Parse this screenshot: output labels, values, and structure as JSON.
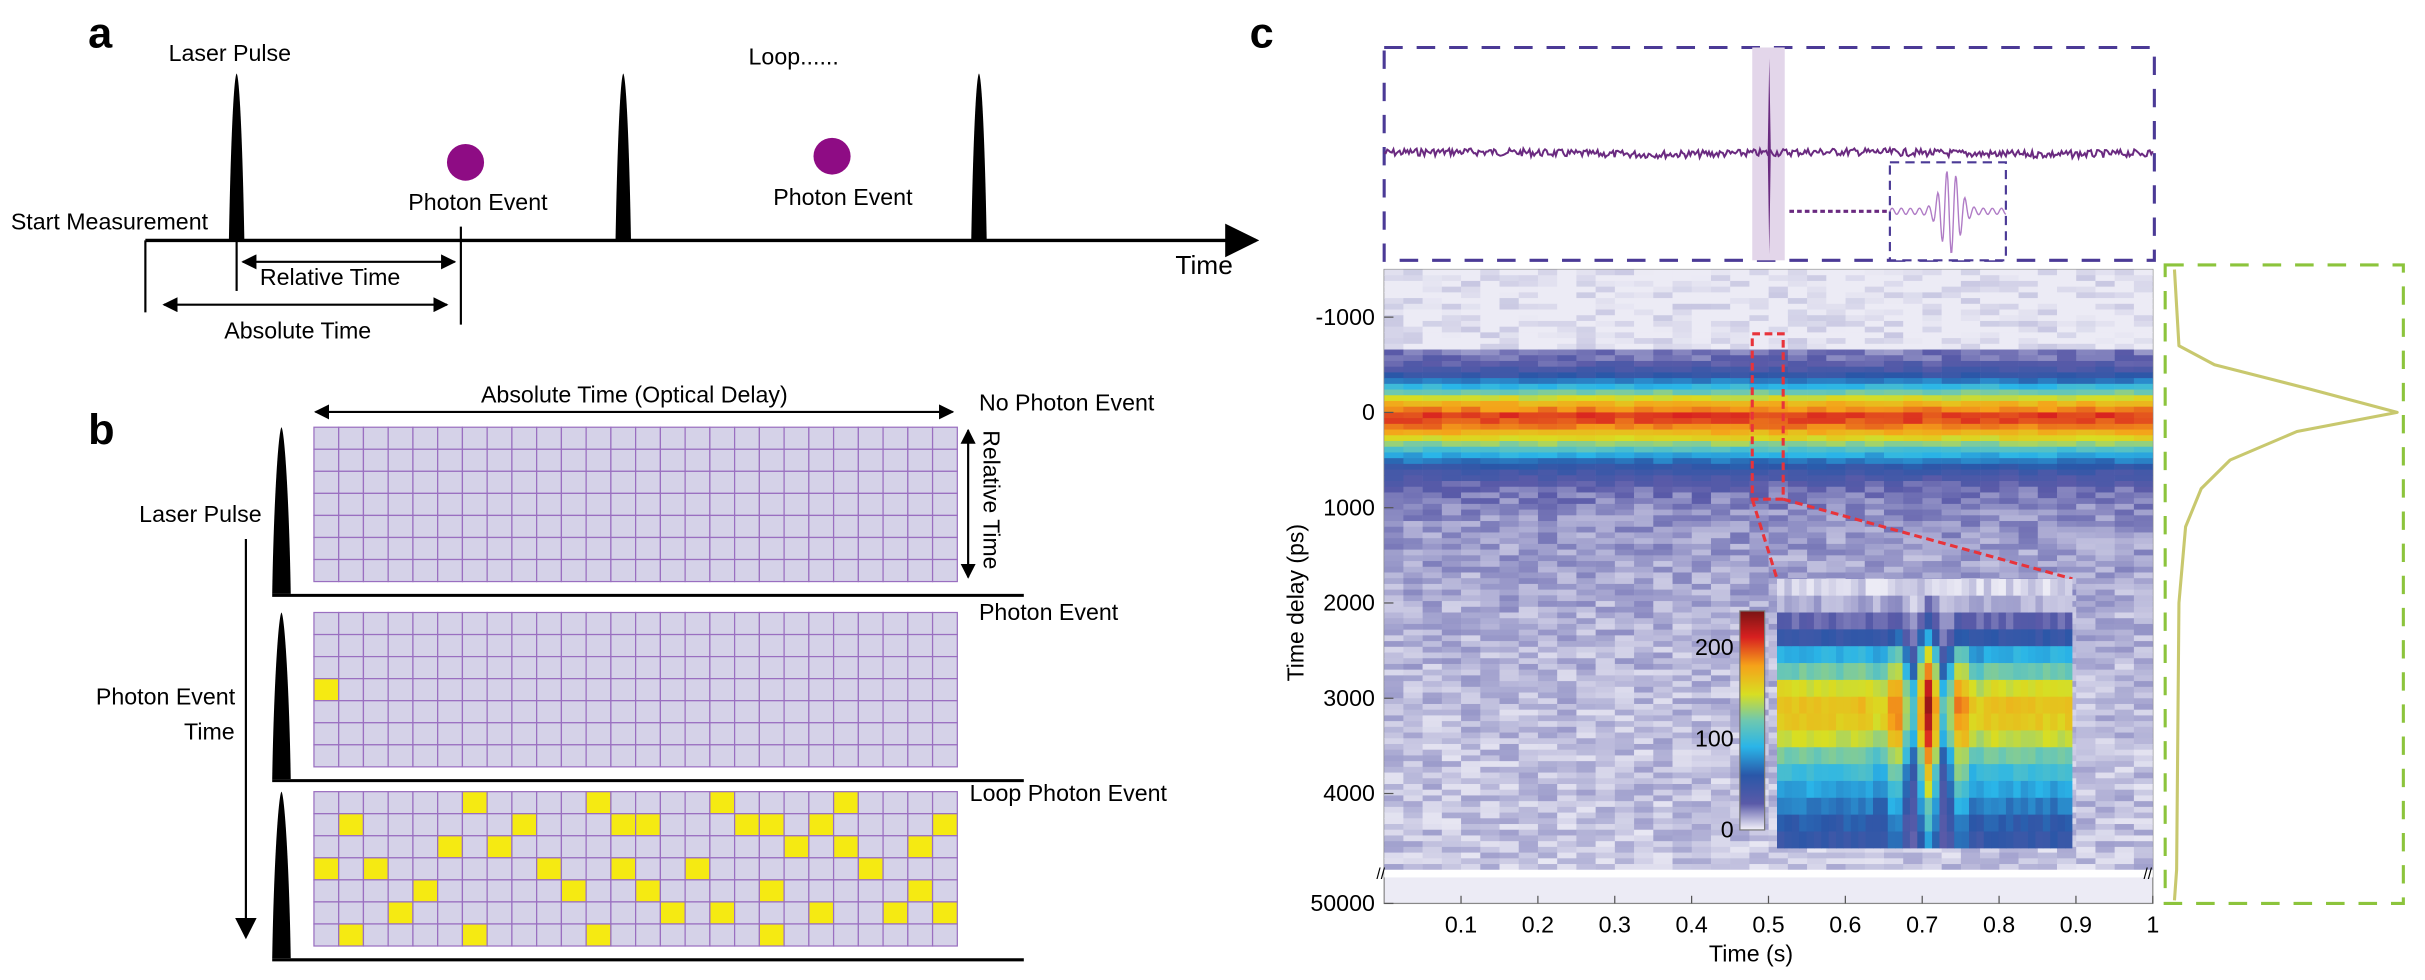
{
  "panel_a": {
    "letter": "a",
    "laser_pulse_label": "Laser Pulse",
    "loop_label": "Loop......",
    "start_label": "Start Measurement",
    "photon_event_label_1": "Photon Event",
    "photon_event_label_2": "Photon Event",
    "relative_time_label": "Relative Time",
    "absolute_time_label": "Absolute Time",
    "time_axis_label": "Time",
    "photon_color": "#8e0c84"
  },
  "panel_b": {
    "letter": "b",
    "top_axis_label": "Absolute Time (Optical Delay)",
    "relative_time_label": "Relative Time",
    "laser_pulse_label": "Laser Pulse",
    "photon_event_time_label_1": "Photon Event",
    "photon_event_time_label_2": "Time",
    "grid_rows": 7,
    "grid_cols": 26,
    "cell_color": "#d5d2e8",
    "line_color": "#9a6fc0",
    "event_color": "#f5ea12",
    "grids": [
      {
        "label": "No Photon Event",
        "events": []
      },
      {
        "label": "Photon Event",
        "events": [
          [
            3,
            0
          ]
        ]
      },
      {
        "label": "Loop Photon Event",
        "events": [
          [
            0,
            6
          ],
          [
            0,
            11
          ],
          [
            0,
            16
          ],
          [
            0,
            21
          ],
          [
            1,
            1
          ],
          [
            1,
            8
          ],
          [
            1,
            12
          ],
          [
            1,
            13
          ],
          [
            1,
            17
          ],
          [
            1,
            18
          ],
          [
            1,
            20
          ],
          [
            1,
            25
          ],
          [
            2,
            5
          ],
          [
            2,
            7
          ],
          [
            2,
            19
          ],
          [
            2,
            21
          ],
          [
            2,
            24
          ],
          [
            3,
            0
          ],
          [
            3,
            2
          ],
          [
            3,
            9
          ],
          [
            3,
            12
          ],
          [
            3,
            15
          ],
          [
            3,
            22
          ],
          [
            4,
            4
          ],
          [
            4,
            10
          ],
          [
            4,
            13
          ],
          [
            4,
            18
          ],
          [
            4,
            24
          ],
          [
            5,
            3
          ],
          [
            5,
            14
          ],
          [
            5,
            16
          ],
          [
            5,
            20
          ],
          [
            5,
            23
          ],
          [
            5,
            25
          ],
          [
            6,
            1
          ],
          [
            6,
            6
          ],
          [
            6,
            11
          ],
          [
            6,
            18
          ]
        ]
      }
    ]
  },
  "panel_c": {
    "letter": "c",
    "signal_color": "#6a2a80",
    "top_box_color": "#4b3a96",
    "profile_box_color": "#8cc43c",
    "profile_line_color": "#c8c86e",
    "zoom_box_color": "#e8333a"
  },
  "chart_data": {
    "type": "heatmap",
    "title": "",
    "xlabel": "Time (s)",
    "ylabel": "Time delay (ps)",
    "x_ticks": [
      "0.1",
      "0.2",
      "0.3",
      "0.4",
      "0.5",
      "0.6",
      "0.7",
      "0.8",
      "0.9",
      "1"
    ],
    "x_range": [
      0,
      1
    ],
    "y_ticks": [
      "-1000",
      "0",
      "1000",
      "2000",
      "3000",
      "4000",
      "50000"
    ],
    "y_range": [
      -1500,
      4800
    ],
    "y_break": "axis break between 4800 and 50000",
    "band_center_ps": 0,
    "profile": {
      "description": "Time-integrated counts vs time delay",
      "peak_ps": 0,
      "points": [
        {
          "ps": -1500,
          "v": 0.0
        },
        {
          "ps": -700,
          "v": 0.02
        },
        {
          "ps": -500,
          "v": 0.18
        },
        {
          "ps": -250,
          "v": 0.6
        },
        {
          "ps": 0,
          "v": 1.0
        },
        {
          "ps": 200,
          "v": 0.55
        },
        {
          "ps": 500,
          "v": 0.25
        },
        {
          "ps": 800,
          "v": 0.12
        },
        {
          "ps": 1200,
          "v": 0.05
        },
        {
          "ps": 2000,
          "v": 0.02
        },
        {
          "ps": 4800,
          "v": 0.01
        }
      ]
    },
    "colorbar": {
      "ticks": [
        "0",
        "100",
        "200"
      ],
      "range": [
        0,
        240
      ]
    },
    "zoom_region": {
      "x_range": [
        0.48,
        0.52
      ],
      "y_range": [
        -800,
        950
      ]
    },
    "highlight_time_s": 0.5
  }
}
